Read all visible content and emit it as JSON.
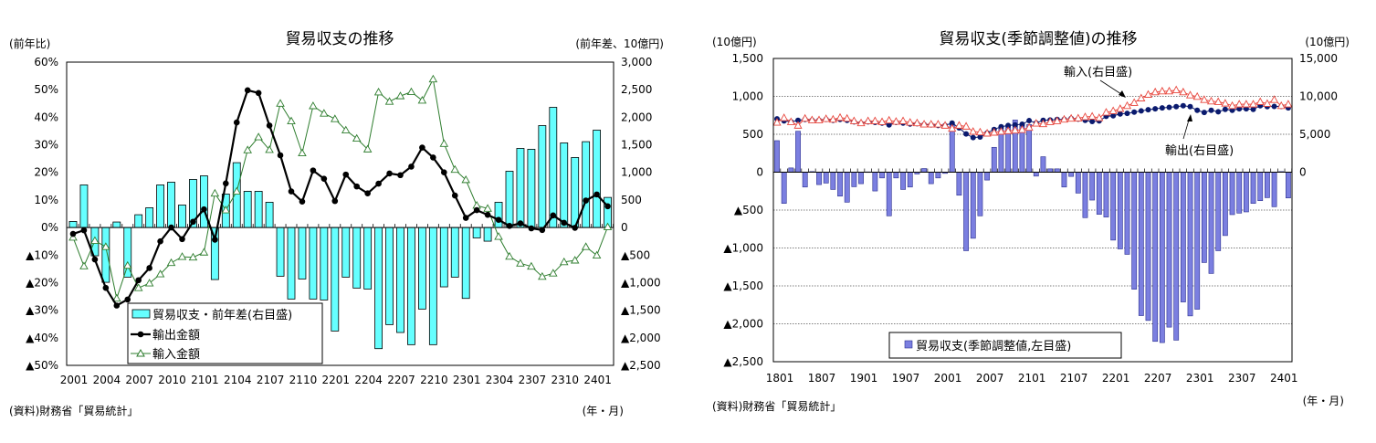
{
  "colors": {
    "bar_left": "#66FFFF",
    "bar_right": "#7B7FE0",
    "export_left": "#000000",
    "import_left": "#2E7D2E",
    "export_right": "#0A1A6E",
    "import_right": "#E8483F"
  },
  "chart_data": [
    {
      "type": "bar+line",
      "title": "貿易収支の推移",
      "left_unit": "(前年比)",
      "right_unit": "(前年差、10億円)",
      "xlabel": "(年・月)",
      "source": "(資料)財務省「貿易統計」",
      "grid": false,
      "legend_position": "bottom-left",
      "ylim_left": [
        -50,
        60
      ],
      "ylim_right": [
        -2500,
        3000
      ],
      "yticks_left": [
        {
          "v": 60,
          "label": "60%"
        },
        {
          "v": 50,
          "label": "50%"
        },
        {
          "v": 40,
          "label": "40%"
        },
        {
          "v": 30,
          "label": "30%"
        },
        {
          "v": 20,
          "label": "20%"
        },
        {
          "v": 10,
          "label": "10%"
        },
        {
          "v": 0,
          "label": "0%"
        },
        {
          "v": -10,
          "label": "▲10%"
        },
        {
          "v": -20,
          "label": "▲20%"
        },
        {
          "v": -30,
          "label": "▲30%"
        },
        {
          "v": -40,
          "label": "▲40%"
        },
        {
          "v": -50,
          "label": "▲50%"
        }
      ],
      "yticks_right": [
        {
          "v": 3000,
          "label": "3,000"
        },
        {
          "v": 2500,
          "label": "2,500"
        },
        {
          "v": 2000,
          "label": "2,000"
        },
        {
          "v": 1500,
          "label": "1,500"
        },
        {
          "v": 1000,
          "label": "1,000"
        },
        {
          "v": 500,
          "label": "500"
        },
        {
          "v": 0,
          "label": "0"
        },
        {
          "v": -500,
          "label": "▲500"
        },
        {
          "v": -1000,
          "label": "▲1,000"
        },
        {
          "v": -1500,
          "label": "▲1,500"
        },
        {
          "v": -2000,
          "label": "▲2,000"
        },
        {
          "v": -2500,
          "label": "▲2,500"
        }
      ],
      "x_ticks": [
        {
          "i": 0,
          "label": "2001"
        },
        {
          "i": 3,
          "label": "2004"
        },
        {
          "i": 6,
          "label": "2007"
        },
        {
          "i": 9,
          "label": "2010"
        },
        {
          "i": 12,
          "label": "2101"
        },
        {
          "i": 15,
          "label": "2104"
        },
        {
          "i": 18,
          "label": "2107"
        },
        {
          "i": 21,
          "label": "2110"
        },
        {
          "i": 24,
          "label": "2201"
        },
        {
          "i": 27,
          "label": "2204"
        },
        {
          "i": 30,
          "label": "2207"
        },
        {
          "i": 33,
          "label": "2210"
        },
        {
          "i": 36,
          "label": "2301"
        },
        {
          "i": 39,
          "label": "2304"
        },
        {
          "i": 42,
          "label": "2307"
        },
        {
          "i": 45,
          "label": "2310"
        },
        {
          "i": 48,
          "label": "2401"
        }
      ],
      "series": [
        {
          "name": "貿易収支・前年差(右目盛)",
          "kind": "bar",
          "axis": "right",
          "values": [
            110,
            773,
            -513,
            -994,
            100,
            -900,
            232,
            359,
            773,
            822,
            408,
            872,
            938,
            -944,
            607,
            1176,
            657,
            657,
            458,
            -883,
            -1297,
            -933,
            -1297,
            -1314,
            -1877,
            -900,
            -1098,
            -1115,
            -2197,
            -1761,
            -1904,
            -2125,
            -1479,
            -2125,
            -1076,
            -900,
            -1286,
            -188,
            -248,
            458,
            1021,
            1435,
            1419,
            1849,
            2180,
            1535,
            1270,
            1557,
            1766,
            546
          ]
        },
        {
          "name": "輸出金額",
          "kind": "line",
          "marker": "circle",
          "axis": "left",
          "values": [
            -2.3,
            -1.0,
            -11.6,
            -21.9,
            -28.3,
            -26.1,
            -19.1,
            -14.7,
            -5.0,
            0.0,
            -4.2,
            2.1,
            6.6,
            -4.4,
            16.0,
            38.1,
            49.8,
            48.8,
            37.0,
            26.2,
            13.1,
            9.4,
            20.7,
            17.7,
            9.6,
            19.2,
            14.9,
            12.4,
            15.9,
            19.6,
            19.0,
            22.1,
            29.0,
            25.4,
            20.0,
            11.6,
            3.5,
            6.3,
            4.6,
            2.8,
            0.6,
            1.5,
            -0.3,
            -0.9,
            4.4,
            1.7,
            -0.1,
            9.8,
            12.0,
            7.7
          ]
        },
        {
          "name": "輸入金額",
          "kind": "line",
          "marker": "triangle",
          "axis": "left",
          "values": [
            -3.6,
            -14.0,
            -4.8,
            -7.0,
            -25.7,
            -13.8,
            -21.9,
            -20.2,
            -16.9,
            -12.8,
            -10.6,
            -10.8,
            -9.0,
            12.4,
            6.3,
            13.1,
            28.1,
            32.8,
            28.2,
            45.0,
            38.6,
            27.0,
            44.1,
            41.4,
            39.4,
            35.3,
            32.3,
            28.4,
            49.1,
            45.7,
            47.7,
            49.2,
            46.1,
            53.8,
            30.4,
            21.0,
            17.3,
            8.0,
            6.9,
            -3.3,
            -10.5,
            -13.0,
            -14.1,
            -17.8,
            -16.6,
            -12.5,
            -11.9,
            -7.0,
            -10.1,
            0.2
          ]
        }
      ]
    },
    {
      "type": "bar+line",
      "title": "貿易収支(季節調整値)の推移",
      "left_unit": "(10億円)",
      "right_unit": "(10億円)",
      "xlabel": "(年・月)",
      "source": "(資料)財務省「貿易統計」",
      "grid": true,
      "legend_position": "bottom-center",
      "ylim_left": [
        -2500,
        1500
      ],
      "ylim_right": [
        -25000,
        15000
      ],
      "yticks_left": [
        {
          "v": 1500,
          "label": "1,500"
        },
        {
          "v": 1000,
          "label": "1,000"
        },
        {
          "v": 500,
          "label": "500"
        },
        {
          "v": 0,
          "label": "0"
        },
        {
          "v": -500,
          "label": "▲500"
        },
        {
          "v": -1000,
          "label": "▲1,000"
        },
        {
          "v": -1500,
          "label": "▲1,500"
        },
        {
          "v": -2000,
          "label": "▲2,000"
        },
        {
          "v": -2500,
          "label": "▲2,500"
        }
      ],
      "yticks_right": [
        {
          "v": 15000,
          "label": "15,000"
        },
        {
          "v": 10000,
          "label": "10,000"
        },
        {
          "v": 5000,
          "label": "5,000"
        },
        {
          "v": 0,
          "label": "0"
        }
      ],
      "x_ticks": [
        {
          "i": 0,
          "label": "1801"
        },
        {
          "i": 6,
          "label": "1807"
        },
        {
          "i": 12,
          "label": "1901"
        },
        {
          "i": 18,
          "label": "1907"
        },
        {
          "i": 24,
          "label": "2001"
        },
        {
          "i": 30,
          "label": "2007"
        },
        {
          "i": 36,
          "label": "2101"
        },
        {
          "i": 42,
          "label": "2107"
        },
        {
          "i": 48,
          "label": "2201"
        },
        {
          "i": 54,
          "label": "2207"
        },
        {
          "i": 60,
          "label": "2301"
        },
        {
          "i": 66,
          "label": "2307"
        },
        {
          "i": 72,
          "label": "2401"
        }
      ],
      "annotations": [
        {
          "label": "輸入(右目盛)",
          "series": "import"
        },
        {
          "label": "輸出(右目盛)",
          "series": "export"
        }
      ],
      "series": [
        {
          "name": "貿易収支(季節調整値,左目盛)",
          "kind": "bar",
          "axis": "left",
          "values": [
            416,
            -412,
            56,
            540,
            -196,
            8,
            -164,
            -144,
            -228,
            -316,
            -396,
            -192,
            -152,
            4,
            -248,
            -76,
            -576,
            -76,
            -228,
            -196,
            -24,
            48,
            -152,
            -76,
            -16,
            648,
            -304,
            -1036,
            -872,
            -576,
            -104,
            328,
            596,
            608,
            688,
            624,
            628,
            -52,
            204,
            44,
            44,
            -196,
            -56,
            -276,
            -600,
            -368,
            -556,
            -592,
            -896,
            -1012,
            -1084,
            -1544,
            -1892,
            -1956,
            -2232,
            -2248,
            -2044,
            -2216,
            -1712,
            -1896,
            -1808,
            -1192,
            -1336,
            -1036,
            -836,
            -560,
            -540,
            -524,
            -412,
            -376,
            -336,
            -456,
            8,
            -340
          ]
        },
        {
          "name": "輸出",
          "kind": "line",
          "marker": "circle",
          "axis": "right",
          "values": [
            7040,
            6760,
            6640,
            6840,
            6960,
            6840,
            6840,
            6960,
            6840,
            6960,
            6840,
            6640,
            6440,
            6640,
            6560,
            6480,
            6240,
            6560,
            6480,
            6360,
            6400,
            6280,
            6240,
            6160,
            6160,
            6480,
            5840,
            5040,
            4560,
            4640,
            5160,
            5640,
            6000,
            6160,
            6240,
            6320,
            6800,
            6480,
            6840,
            6880,
            6960,
            6960,
            7080,
            7000,
            6840,
            6680,
            6760,
            7360,
            7440,
            7680,
            7760,
            7920,
            8080,
            8240,
            8360,
            8480,
            8560,
            8640,
            8760,
            8640,
            8160,
            7880,
            8160,
            7960,
            8280,
            8160,
            8360,
            8360,
            8280,
            8760,
            8640,
            8680,
            8680,
            8480
          ]
        },
        {
          "name": "輸入",
          "kind": "line",
          "marker": "triangle",
          "axis": "right",
          "values": [
            6560,
            7160,
            6640,
            6160,
            7080,
            6880,
            6880,
            7040,
            6960,
            7200,
            7080,
            6760,
            6480,
            6760,
            6760,
            6640,
            6840,
            6680,
            6760,
            6560,
            6480,
            6320,
            6320,
            6320,
            6160,
            5760,
            6160,
            6040,
            5360,
            5280,
            5120,
            5240,
            5360,
            5440,
            5520,
            5600,
            5880,
            6440,
            6360,
            6640,
            6760,
            6960,
            7080,
            7120,
            7280,
            7360,
            7160,
            7880,
            8080,
            8360,
            8760,
            9160,
            9760,
            10240,
            10560,
            10680,
            10680,
            10840,
            10560,
            10160,
            9960,
            9560,
            9360,
            9280,
            9080,
            8760,
            8960,
            8960,
            8960,
            9280,
            9040,
            9560,
            8760,
            8960
          ]
        }
      ]
    }
  ]
}
